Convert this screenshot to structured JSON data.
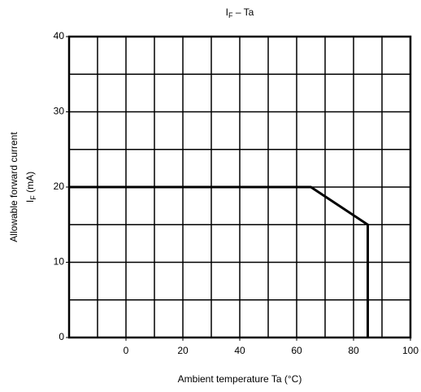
{
  "chart_data": {
    "type": "line",
    "title": {
      "symbol": "I",
      "subscript": "F",
      "text": " – Ta"
    },
    "x_label": "Ambient temperature   Ta   (°C)",
    "y_label": {
      "line1": "Allowable forward current",
      "symbol": "I",
      "subscript": "F",
      "unit": "(mA)"
    },
    "x": [
      -20,
      65,
      85,
      85
    ],
    "series": [
      {
        "color": "#000000",
        "values": [
          20,
          20,
          15,
          0
        ]
      }
    ],
    "xlim": [
      -20,
      100
    ],
    "ylim": [
      0,
      40
    ],
    "xticks": [
      0,
      20,
      40,
      60,
      80,
      100
    ],
    "yticks": [
      0,
      10,
      20,
      30,
      40
    ],
    "xgrid": [
      -20,
      -10,
      0,
      10,
      20,
      30,
      40,
      50,
      60,
      70,
      80,
      90,
      100
    ],
    "ygrid": [
      0,
      5,
      10,
      15,
      20,
      25,
      30,
      35,
      40
    ],
    "grid": true
  }
}
